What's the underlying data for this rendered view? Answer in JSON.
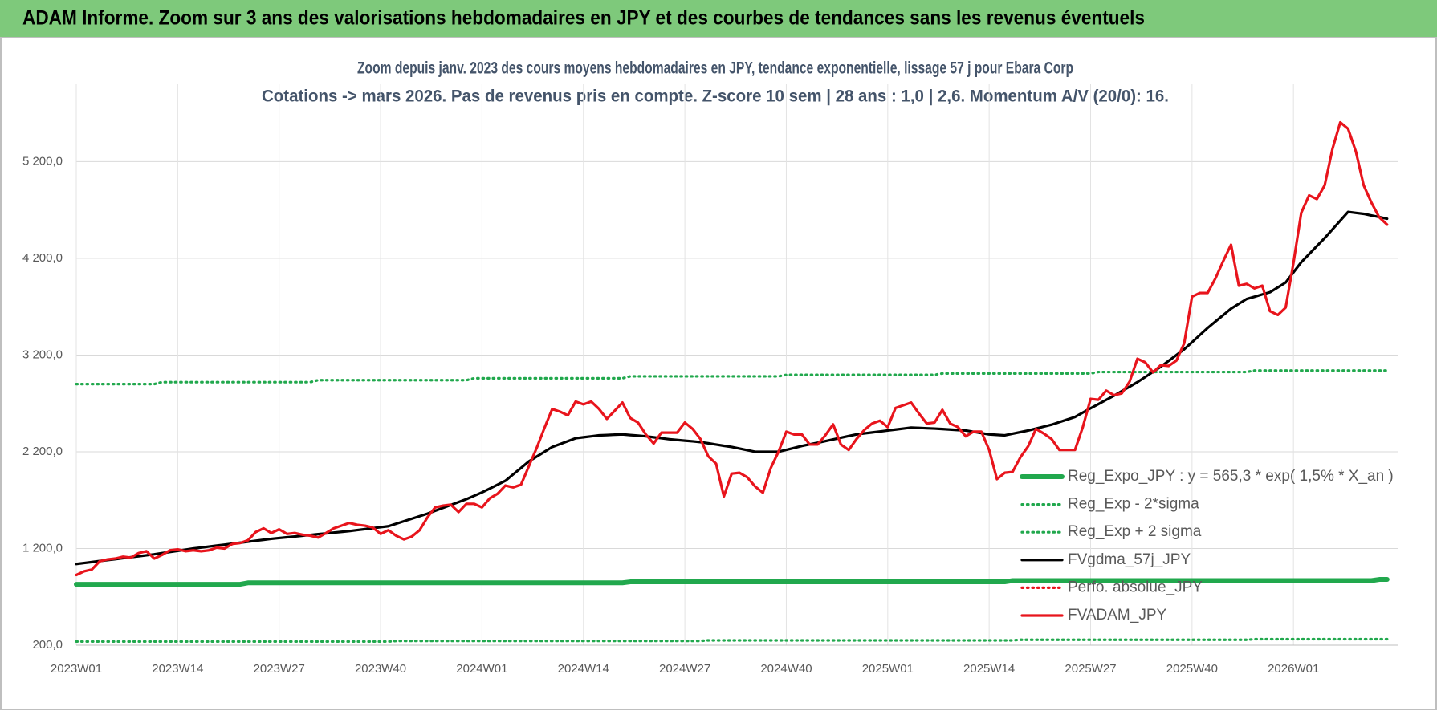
{
  "chart_data": {
    "type": "line",
    "title": "ADAM Informe. Zoom sur 3 ans des valorisations hebdomadaires en JPY et des courbes de tendances sans les revenus éventuels",
    "subtitle": [
      "Zoom depuis janv. 2023 des cours moyens hebdomadaires en JPY, tendance exponentielle, lissage 57 j pour Ebara Corp",
      "Cotations -> mars 2026. Pas de revenus pris en compte. Z-score 10 sem | 28 ans : 1,0 | 2,6. Momentum A/V (20/0): 16."
    ],
    "categories": [
      "2023W01",
      null,
      null,
      null,
      null,
      null,
      null,
      null,
      null,
      null,
      null,
      null,
      null,
      "2023W14",
      null,
      null,
      null,
      null,
      null,
      null,
      null,
      null,
      null,
      null,
      null,
      null,
      "2023W27",
      null,
      null,
      null,
      null,
      null,
      null,
      null,
      null,
      null,
      null,
      null,
      null,
      "2023W40",
      null,
      null,
      null,
      null,
      null,
      null,
      null,
      null,
      null,
      null,
      null,
      null,
      "2024W01",
      null,
      null,
      null,
      null,
      null,
      null,
      null,
      null,
      null,
      null,
      null,
      null,
      "2024W14",
      null,
      null,
      null,
      null,
      null,
      null,
      null,
      null,
      null,
      null,
      null,
      null,
      "2024W27",
      null,
      null,
      null,
      null,
      null,
      null,
      null,
      null,
      null,
      null,
      null,
      null,
      "2024W40",
      null,
      null,
      null,
      null,
      null,
      null,
      null,
      null,
      null,
      null,
      null,
      null,
      "2025W01",
      null,
      null,
      null,
      null,
      null,
      null,
      null,
      null,
      null,
      null,
      null,
      null,
      "2025W14",
      null,
      null,
      null,
      null,
      null,
      null,
      null,
      null,
      null,
      null,
      null,
      null,
      "2025W27",
      null,
      null,
      null,
      null,
      null,
      null,
      null,
      null,
      null,
      null,
      null,
      null,
      "2025W40",
      null,
      null,
      null,
      null,
      null,
      null,
      null,
      null,
      null,
      null,
      null,
      null,
      "2026W01",
      null,
      null,
      null,
      null,
      null,
      null,
      null,
      null,
      null,
      null,
      null,
      null
    ],
    "ylim": [
      200,
      6000
    ],
    "yticks": [
      {
        "value": 200,
        "label": "200,0"
      },
      {
        "value": 1200,
        "label": "1 200,0"
      },
      {
        "value": 2200,
        "label": "2 200,0"
      },
      {
        "value": 3200,
        "label": "3 200,0"
      },
      {
        "value": 4200,
        "label": "4 200,0"
      },
      {
        "value": 5200,
        "label": "5 200,0"
      }
    ],
    "grid": true,
    "legend_position": "right",
    "series": [
      {
        "name": "Reg_Expo_JPY : y = 565,3 * exp( 1,5% *  X_an )",
        "color": "#21a84d",
        "style": "solid",
        "values": [
          830,
          830,
          830,
          830,
          830,
          830,
          830,
          830,
          830,
          830,
          830,
          830,
          830,
          830,
          830,
          830,
          830,
          830,
          830,
          830,
          830,
          830,
          845,
          845,
          845,
          845,
          845,
          845,
          845,
          845,
          845,
          845,
          845,
          845,
          845,
          845,
          845,
          845,
          845,
          845,
          845,
          845,
          845,
          845,
          845,
          845,
          845,
          845,
          845,
          845,
          845,
          845,
          845,
          845,
          845,
          845,
          845,
          845,
          845,
          845,
          845,
          845,
          845,
          845,
          845,
          845,
          845,
          845,
          845,
          845,
          845,
          855,
          855,
          855,
          855,
          855,
          855,
          855,
          855,
          855,
          855,
          855,
          855,
          855,
          855,
          855,
          855,
          855,
          855,
          855,
          855,
          855,
          855,
          855,
          855,
          855,
          855,
          855,
          855,
          855,
          855,
          855,
          855,
          855,
          855,
          855,
          855,
          855,
          855,
          855,
          855,
          855,
          855,
          855,
          855,
          855,
          855,
          855,
          855,
          855,
          868,
          868,
          868,
          868,
          868,
          868,
          868,
          868,
          868,
          868,
          868,
          868,
          868,
          868,
          868,
          868,
          868,
          868,
          868,
          868,
          868,
          868,
          868,
          868,
          868,
          868,
          868,
          868,
          868,
          868,
          868,
          868,
          868,
          868,
          868,
          868,
          868,
          868,
          868,
          868,
          868,
          868,
          868,
          868,
          868,
          868,
          868,
          880,
          880
        ]
      },
      {
        "name": "Reg_Exp - 2*sigma",
        "color": "#21a84d",
        "style": "dotted",
        "values": [
          238,
          238,
          238,
          238,
          238,
          238,
          238,
          238,
          238,
          238,
          238,
          238,
          238,
          238,
          238,
          238,
          238,
          238,
          238,
          238,
          238,
          238,
          238,
          238,
          238,
          238,
          238,
          238,
          238,
          238,
          238,
          238,
          238,
          238,
          238,
          238,
          238,
          238,
          238,
          238,
          238,
          244,
          244,
          244,
          244,
          244,
          244,
          244,
          244,
          244,
          244,
          244,
          244,
          244,
          244,
          244,
          244,
          244,
          244,
          244,
          244,
          244,
          244,
          244,
          244,
          244,
          244,
          244,
          244,
          244,
          244,
          244,
          244,
          244,
          244,
          244,
          244,
          244,
          244,
          244,
          244,
          250,
          250,
          250,
          250,
          250,
          250,
          250,
          250,
          250,
          250,
          250,
          250,
          250,
          250,
          250,
          250,
          250,
          250,
          250,
          250,
          250,
          250,
          250,
          250,
          250,
          250,
          250,
          250,
          250,
          250,
          250,
          250,
          250,
          250,
          250,
          250,
          250,
          250,
          250,
          250,
          256,
          256,
          256,
          256,
          256,
          256,
          256,
          256,
          256,
          256,
          256,
          256,
          256,
          256,
          256,
          256,
          256,
          256,
          256,
          256,
          256,
          256,
          256,
          256,
          256,
          256,
          256,
          256,
          256,
          256,
          262,
          262,
          262,
          262,
          262,
          262,
          262,
          262,
          262,
          262,
          262,
          262,
          262,
          262,
          262,
          262,
          262,
          262
        ]
      },
      {
        "name": "Reg_Exp + 2 sigma",
        "color": "#21a84d",
        "style": "dotted",
        "values": [
          2900,
          2900,
          2900,
          2900,
          2900,
          2900,
          2900,
          2900,
          2900,
          2900,
          2900,
          2920,
          2920,
          2920,
          2920,
          2920,
          2920,
          2920,
          2920,
          2920,
          2920,
          2920,
          2920,
          2920,
          2920,
          2920,
          2920,
          2920,
          2920,
          2920,
          2920,
          2940,
          2940,
          2940,
          2940,
          2940,
          2940,
          2940,
          2940,
          2940,
          2940,
          2940,
          2940,
          2940,
          2940,
          2940,
          2940,
          2940,
          2940,
          2940,
          2940,
          2960,
          2960,
          2960,
          2960,
          2960,
          2960,
          2960,
          2960,
          2960,
          2960,
          2960,
          2960,
          2960,
          2960,
          2960,
          2960,
          2960,
          2960,
          2960,
          2960,
          2980,
          2980,
          2980,
          2980,
          2980,
          2980,
          2980,
          2980,
          2980,
          2980,
          2980,
          2980,
          2980,
          2980,
          2980,
          2980,
          2980,
          2980,
          2980,
          2980,
          2995,
          2995,
          2995,
          2995,
          2995,
          2995,
          2995,
          2995,
          2995,
          2995,
          2995,
          2995,
          2995,
          2995,
          2995,
          2995,
          2995,
          2995,
          2995,
          2995,
          3010,
          3010,
          3010,
          3010,
          3010,
          3010,
          3010,
          3010,
          3010,
          3010,
          3010,
          3010,
          3010,
          3010,
          3010,
          3010,
          3010,
          3010,
          3010,
          3010,
          3025,
          3025,
          3025,
          3025,
          3025,
          3025,
          3025,
          3025,
          3025,
          3025,
          3025,
          3025,
          3025,
          3025,
          3025,
          3025,
          3025,
          3025,
          3025,
          3025,
          3040,
          3040,
          3040,
          3040,
          3040,
          3040,
          3040,
          3040,
          3040,
          3040,
          3040,
          3040,
          3040,
          3040,
          3040,
          3040,
          3040,
          3040
        ]
      },
      {
        "name": "FVgdma_57j_JPY",
        "color": "#000000",
        "style": "solid",
        "values": [
          1040,
          1050,
          1060,
          1070,
          1080,
          1090,
          1100,
          1110,
          1120,
          1130,
          1140,
          1152,
          1164,
          1176,
          1188,
          1200,
          1210,
          1220,
          1230,
          1240,
          1250,
          1260,
          1270,
          1280,
          1290,
          1300,
          1308,
          1316,
          1324,
          1332,
          1340,
          1348,
          1356,
          1364,
          1372,
          1380,
          1390,
          1400,
          1410,
          1420,
          1430,
          1456,
          1482,
          1508,
          1534,
          1560,
          1590,
          1620,
          1650,
          1680,
          1710,
          1745,
          1780,
          1820,
          1860,
          1900,
          1967,
          2033,
          2100,
          2150,
          2200,
          2250,
          2280,
          2310,
          2340,
          2350,
          2360,
          2370,
          2373,
          2377,
          2380,
          2373,
          2367,
          2360,
          2350,
          2340,
          2330,
          2322,
          2315,
          2308,
          2300,
          2288,
          2275,
          2262,
          2250,
          2233,
          2217,
          2200,
          2200,
          2200,
          2200,
          2220,
          2240,
          2260,
          2277,
          2293,
          2310,
          2328,
          2345,
          2363,
          2380,
          2390,
          2400,
          2410,
          2420,
          2430,
          2440,
          2450,
          2447,
          2443,
          2440,
          2435,
          2430,
          2425,
          2420,
          2407,
          2393,
          2380,
          2375,
          2370,
          2387,
          2403,
          2420,
          2440,
          2460,
          2480,
          2507,
          2533,
          2560,
          2605,
          2650,
          2693,
          2737,
          2780,
          2827,
          2873,
          2920,
          2973,
          3027,
          3080,
          3140,
          3200,
          3260,
          3333,
          3407,
          3480,
          3547,
          3613,
          3680,
          3730,
          3780,
          3803,
          3827,
          3850,
          3900,
          3950,
          4055,
          4160,
          4243,
          4327,
          4410,
          4500,
          4590,
          4680,
          4670,
          4660,
          4643,
          4627,
          4610
        ]
      },
      {
        "name": "Perfo. absolue_JPY",
        "color": "#e8141c",
        "style": "dotted"
      },
      {
        "name": "FVADAM_JPY",
        "color": "#e8141c",
        "style": "solid",
        "values": [
          926,
          964,
          983,
          1068,
          1087,
          1096,
          1115,
          1106,
          1153,
          1172,
          1096,
          1134,
          1181,
          1191,
          1172,
          1181,
          1172,
          1181,
          1209,
          1200,
          1247,
          1257,
          1285,
          1370,
          1408,
          1360,
          1398,
          1351,
          1360,
          1342,
          1332,
          1313,
          1360,
          1408,
          1436,
          1464,
          1445,
          1436,
          1417,
          1351,
          1389,
          1332,
          1294,
          1323,
          1389,
          1521,
          1625,
          1643,
          1653,
          1577,
          1662,
          1662,
          1625,
          1719,
          1766,
          1851,
          1832,
          1860,
          2049,
          2238,
          2445,
          2643,
          2615,
          2577,
          2719,
          2690,
          2719,
          2643,
          2540,
          2624,
          2709,
          2549,
          2502,
          2379,
          2285,
          2398,
          2398,
          2398,
          2502,
          2436,
          2332,
          2153,
          2077,
          1738,
          1974,
          1983,
          1936,
          1842,
          1776,
          2030,
          2200,
          2408,
          2379,
          2379,
          2275,
          2275,
          2370,
          2483,
          2275,
          2219,
          2332,
          2426,
          2492,
          2521,
          2455,
          2653,
          2681,
          2709,
          2596,
          2492,
          2502,
          2634,
          2492,
          2455,
          2360,
          2408,
          2408,
          2219,
          1917,
          1983,
          1992,
          2143,
          2257,
          2436,
          2389,
          2332,
          2219,
          2219,
          2219,
          2455,
          2747,
          2738,
          2832,
          2785,
          2804,
          2926,
          3162,
          3125,
          3021,
          3096,
          3087,
          3143,
          3323,
          3804,
          3842,
          3842,
          3993,
          4172,
          4341,
          3917,
          3936,
          3889,
          3917,
          3653,
          3615,
          3691,
          4153,
          4672,
          4851,
          4813,
          4955,
          5332,
          5606,
          5540,
          5304,
          4955,
          4775,
          4624,
          4549
        ]
      }
    ]
  }
}
